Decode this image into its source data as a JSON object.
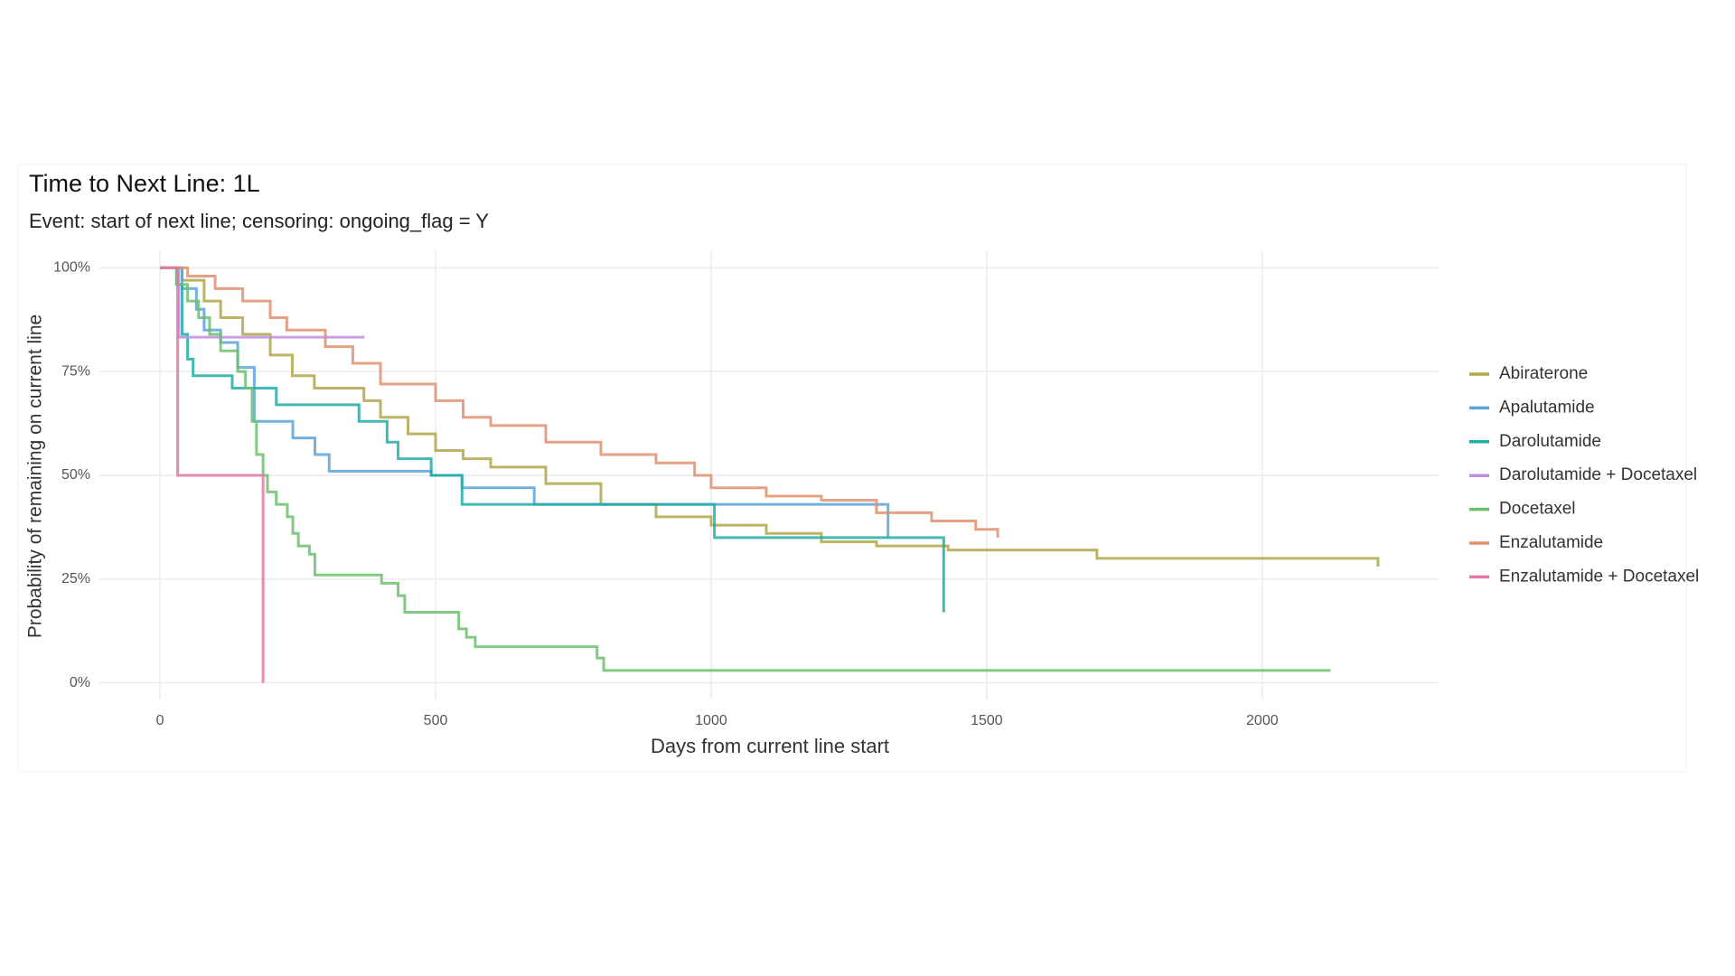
{
  "chart_data": {
    "type": "step",
    "title": "Time to Next Line: 1L",
    "subtitle": "Event: start of next line; censoring: ongoing_flag = Y",
    "x_label": "Days from current line start",
    "y_label": "Probability of remaining on current line",
    "xlim": [
      -110,
      2320
    ],
    "ylim": [
      -4,
      104
    ],
    "xticks": [
      0,
      500,
      1000,
      1500,
      2000
    ],
    "yticks": [
      {
        "value": 0,
        "label": "0%"
      },
      {
        "value": 25,
        "label": "25%"
      },
      {
        "value": 50,
        "label": "50%"
      },
      {
        "value": 75,
        "label": "75%"
      },
      {
        "value": 100,
        "label": "100%"
      }
    ],
    "grid": true,
    "legend": "right",
    "series": [
      {
        "name": "Abiraterone",
        "color": "#b0a64a",
        "x": [
          0,
          40,
          80,
          110,
          150,
          200,
          240,
          280,
          370,
          400,
          450,
          500,
          550,
          600,
          700,
          800,
          900,
          1000,
          1100,
          1200,
          1300,
          1430,
          1700,
          2210
        ],
        "values": [
          100,
          97,
          92,
          88,
          84,
          79,
          74,
          71,
          68,
          64,
          60,
          56,
          54,
          52,
          48,
          43,
          40,
          38,
          36,
          34,
          33,
          32,
          30,
          28
        ]
      },
      {
        "name": "Apalutamide",
        "color": "#5ba3d9",
        "x": [
          0,
          40,
          66,
          80,
          110,
          141,
          171,
          241,
          281,
          307,
          492,
          548,
          679,
          1321
        ],
        "values": [
          100,
          95,
          90,
          85,
          82,
          76,
          63,
          59,
          55,
          51,
          50,
          47,
          43,
          35
        ]
      },
      {
        "name": "Darolutamide",
        "color": "#23aba6",
        "x": [
          0,
          30,
          40,
          50,
          60,
          131,
          211,
          361,
          412,
          432,
          492,
          548,
          1006,
          1422
        ],
        "values": [
          100,
          96,
          84,
          78,
          74,
          71,
          67,
          63,
          58,
          54,
          50,
          43,
          35,
          17
        ]
      },
      {
        "name": "Darolutamide + Docetaxel",
        "color": "#c08ee0",
        "x": [
          0,
          34,
          371
        ],
        "values": [
          100,
          83.3,
          83.3
        ]
      },
      {
        "name": "Docetaxel",
        "color": "#6cbf6c",
        "x": [
          0,
          30,
          50,
          70,
          90,
          110,
          141,
          155,
          167,
          175,
          187,
          195,
          211,
          231,
          241,
          251,
          271,
          281,
          402,
          432,
          444,
          542,
          556,
          572,
          793,
          805,
          2124
        ],
        "values": [
          100,
          96,
          92,
          88,
          84,
          80,
          75,
          71,
          63,
          55,
          50,
          46,
          43,
          40,
          36,
          33,
          31,
          26,
          24,
          21,
          17,
          13,
          11,
          8.7,
          6,
          3,
          3
        ]
      },
      {
        "name": "Enzalutamide",
        "color": "#e0906f",
        "x": [
          0,
          50,
          100,
          150,
          200,
          230,
          300,
          350,
          400,
          500,
          550,
          600,
          700,
          800,
          900,
          970,
          1000,
          1100,
          1200,
          1300,
          1400,
          1480,
          1520
        ],
        "values": [
          100,
          98,
          95,
          92,
          88,
          85,
          81,
          77,
          72,
          68,
          64,
          62,
          58,
          55,
          53,
          50,
          47,
          45,
          44,
          41,
          39,
          37,
          35
        ]
      },
      {
        "name": "Enzalutamide + Docetaxel",
        "color": "#e377a8",
        "x": [
          0,
          32,
          187
        ],
        "values": [
          100,
          50,
          0
        ]
      }
    ]
  }
}
